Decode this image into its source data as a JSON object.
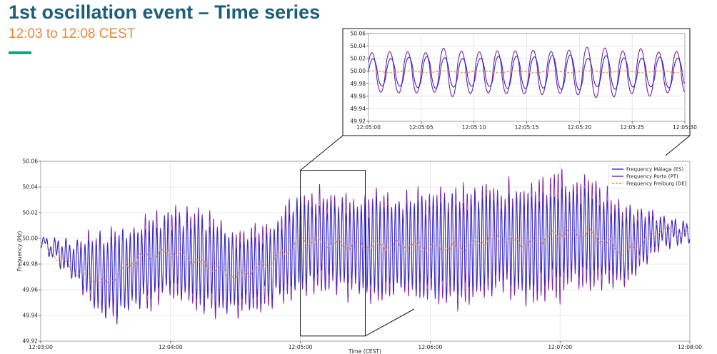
{
  "header": {
    "title": "1st oscillation event – Time series",
    "subtitle": "12:03 to 12:08 CEST",
    "accent_color": "#1aa08a"
  },
  "chart_data": [
    {
      "id": "main",
      "type": "line",
      "title": "",
      "xlabel": "Time (CEST)",
      "ylabel": "Frequency (Hz)",
      "xlim": [
        "12:03:00",
        "12:08:00"
      ],
      "ylim": [
        49.92,
        50.06
      ],
      "x_ticks": [
        "12:03:00",
        "12:04:00",
        "12:05:00",
        "12:06:00",
        "12:07:00",
        "12:08:00"
      ],
      "y_ticks": [
        "49.92",
        "49.94",
        "49.96",
        "49.98",
        "50.00",
        "50.02",
        "50.04",
        "50.06"
      ],
      "grid": true,
      "legend_position": "top-right",
      "zoom_box": {
        "x": [
          "12:05:00",
          "12:05:30"
        ],
        "y": [
          49.924,
          50.053
        ]
      },
      "series": [
        {
          "name": "Frequency Málaga (ES)",
          "color": "#2b2bd6",
          "style": "solid",
          "x": [
            "12:03:00",
            "12:03:15",
            "12:03:30",
            "12:03:45",
            "12:04:00",
            "12:04:15",
            "12:04:30",
            "12:04:45",
            "12:05:00",
            "12:05:15",
            "12:05:30",
            "12:05:45",
            "12:06:00",
            "12:06:15",
            "12:06:30",
            "12:06:45",
            "12:07:00",
            "12:07:15",
            "12:07:30",
            "12:07:45",
            "12:08:00"
          ],
          "amplitude": [
            0.002,
            0.012,
            0.03,
            0.028,
            0.025,
            0.03,
            0.024,
            0.022,
            0.03,
            0.03,
            0.03,
            0.031,
            0.033,
            0.034,
            0.033,
            0.034,
            0.032,
            0.03,
            0.024,
            0.01,
            0.004
          ],
          "center": [
            49.997,
            49.983,
            49.97,
            49.978,
            49.989,
            49.982,
            49.973,
            49.978,
            49.997,
            49.997,
            49.993,
            49.994,
            49.994,
            49.993,
            50.0,
            49.995,
            50.003,
            50.004,
            49.994,
            50.005,
            50.004
          ]
        },
        {
          "name": "Frequency Porto (PT)",
          "color": "#7a1fa0",
          "style": "solid",
          "x": [
            "12:03:00",
            "12:03:15",
            "12:03:30",
            "12:03:45",
            "12:04:00",
            "12:04:15",
            "12:04:30",
            "12:04:45",
            "12:05:00",
            "12:05:15",
            "12:05:30",
            "12:05:45",
            "12:06:00",
            "12:06:15",
            "12:06:30",
            "12:06:45",
            "12:07:00",
            "12:07:15",
            "12:07:30",
            "12:07:45",
            "12:08:00"
          ],
          "amplitude": [
            0.002,
            0.013,
            0.033,
            0.032,
            0.03,
            0.035,
            0.03,
            0.028,
            0.036,
            0.036,
            0.036,
            0.037,
            0.039,
            0.04,
            0.04,
            0.04,
            0.045,
            0.037,
            0.029,
            0.012,
            0.005
          ],
          "center": [
            49.997,
            49.983,
            49.97,
            49.978,
            49.989,
            49.982,
            49.973,
            49.978,
            49.997,
            49.997,
            49.993,
            49.994,
            49.994,
            49.993,
            50.0,
            49.995,
            50.003,
            50.004,
            49.994,
            50.005,
            50.004
          ]
        },
        {
          "name": "Frequency Freiburg (DE)",
          "color": "#f08a24",
          "style": "dashed",
          "x": [
            "12:03:00",
            "12:03:15",
            "12:03:30",
            "12:03:45",
            "12:04:00",
            "12:04:15",
            "12:04:30",
            "12:04:45",
            "12:05:00",
            "12:05:15",
            "12:05:30",
            "12:05:45",
            "12:06:00",
            "12:06:15",
            "12:06:30",
            "12:06:45",
            "12:07:00",
            "12:07:15",
            "12:07:30",
            "12:07:45",
            "12:08:00"
          ],
          "y": [
            49.997,
            49.975,
            49.965,
            49.985,
            49.99,
            49.98,
            49.97,
            49.98,
            49.998,
            49.996,
            49.994,
            49.995,
            49.993,
            49.993,
            50.001,
            49.996,
            50.004,
            50.004,
            49.988,
            50.006,
            50.004
          ]
        }
      ]
    },
    {
      "id": "inset",
      "type": "line",
      "title": "",
      "xlabel": "",
      "ylabel": "",
      "xlim": [
        "12:05:00",
        "12:05:30"
      ],
      "ylim": [
        49.92,
        50.06
      ],
      "x_ticks": [
        "12:05:00",
        "12:05:05",
        "12:05:10",
        "12:05:15",
        "12:05:20",
        "12:05:25",
        "12:05:30"
      ],
      "y_ticks": [
        "49.92",
        "49.94",
        "49.96",
        "49.98",
        "50.00",
        "50.02",
        "50.04",
        "50.06"
      ],
      "grid": true,
      "oscillation_period_s": 1.7,
      "series": [
        {
          "name": "Frequency Málaga (ES)",
          "color": "#2b2bd6",
          "style": "solid",
          "amplitude": 0.025,
          "center": 49.998
        },
        {
          "name": "Frequency Porto (PT)",
          "color": "#7a1fa0",
          "style": "solid",
          "amplitude": 0.036,
          "center": 49.998
        },
        {
          "name": "Frequency Freiburg (DE)",
          "color": "#f08a24",
          "style": "dashed",
          "amplitude": 0.0015,
          "center": 49.999
        }
      ]
    }
  ]
}
